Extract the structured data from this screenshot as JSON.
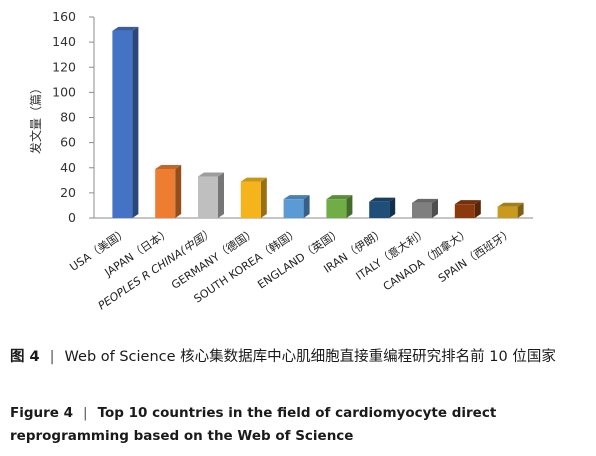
{
  "chart_data": {
    "type": "bar",
    "ylabel": "发文量（篇）",
    "ylim": [
      0,
      160
    ],
    "yticks": [
      0,
      20,
      40,
      60,
      80,
      100,
      120,
      140,
      160
    ],
    "categories": [
      "USA（美国）",
      "JAPAN（日本）",
      "PEOPLES R CHINA(中国）",
      "GERMANY（德国）",
      "SOUTH KOREA（韩国）",
      "ENGLAND（英国）",
      "IRAN（伊朗）",
      "ITALY（意大利）",
      "CANADA（加拿大）",
      "SPAIN（西班牙）"
    ],
    "values": [
      149,
      39,
      33,
      29,
      15,
      15,
      13,
      12,
      11,
      9
    ],
    "colors": [
      "#4472c4",
      "#ed7d31",
      "#bfbfbf",
      "#f5b41c",
      "#5b9bd5",
      "#70ad47",
      "#1f4e79",
      "#7f7f7f",
      "#8b3a0e",
      "#c89a1e"
    ],
    "grid": false,
    "style": "3d-bar"
  },
  "caption": {
    "zh_label": "图 4",
    "zh_text": "Web of Science 核心集数据库中心肌细胞直接重编程研究排名前 10 位国家",
    "en_label": "Figure 4",
    "en_text": "Top 10 countries in the field of cardiomyocyte direct reprogramming based on the Web of Science",
    "separator": "|"
  }
}
